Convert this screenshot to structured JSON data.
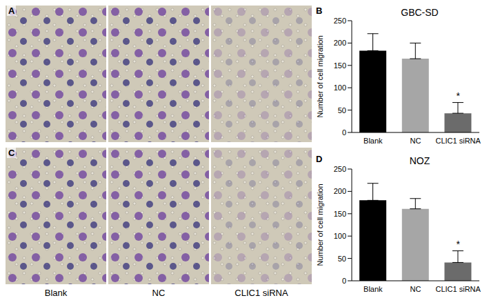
{
  "micrographs": {
    "panels": [
      "A",
      "C"
    ],
    "labels": [
      "Blank",
      "NC",
      "CLIC1 siRNA"
    ]
  },
  "chart_data": [
    {
      "type": "bar",
      "panel": "B",
      "title": "GBC-SD",
      "y_label": "Number of cell migration",
      "categories": [
        "Blank",
        "NC",
        "CLIC1 siRNA"
      ],
      "values": [
        183,
        165,
        43
      ],
      "errors": [
        38,
        35,
        24
      ],
      "colors": [
        "#000000",
        "#a6a6a6",
        "#6b6b6b"
      ],
      "ylim": [
        0,
        250
      ],
      "yticks": [
        0,
        50,
        100,
        150,
        200,
        250
      ],
      "grid": false,
      "annotations": [
        {
          "category": "CLIC1 siRNA",
          "text": "*"
        }
      ]
    },
    {
      "type": "bar",
      "panel": "D",
      "title": "NOZ",
      "y_label": "Number of cell migration",
      "categories": [
        "Blank",
        "NC",
        "CLIC1 siRNA"
      ],
      "values": [
        180,
        161,
        41
      ],
      "errors": [
        38,
        23,
        26
      ],
      "colors": [
        "#000000",
        "#a6a6a6",
        "#6b6b6b"
      ],
      "ylim": [
        0,
        250
      ],
      "yticks": [
        0,
        50,
        100,
        150,
        200,
        250
      ],
      "grid": false,
      "annotations": [
        {
          "category": "CLIC1 siRNA",
          "text": "*"
        }
      ]
    }
  ]
}
